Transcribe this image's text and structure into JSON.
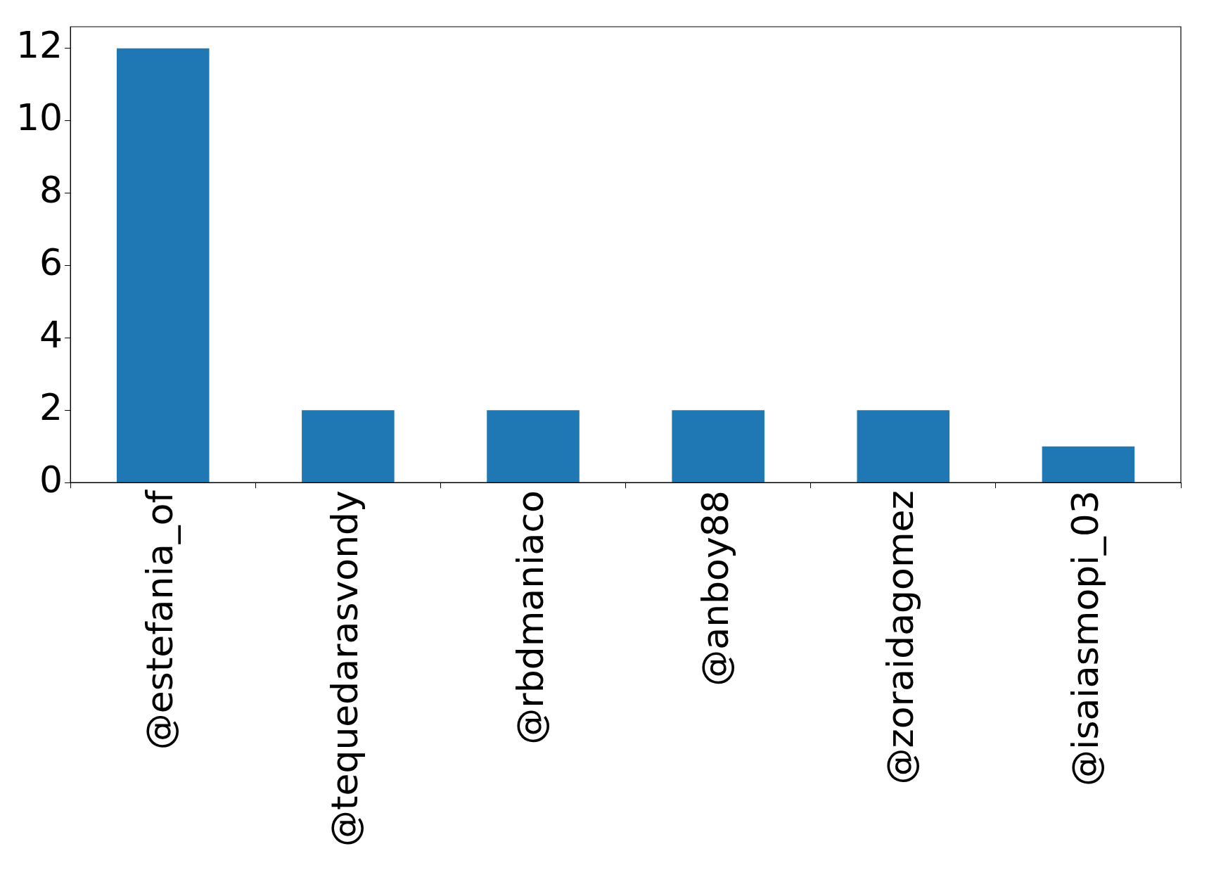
{
  "chart_data": {
    "type": "bar",
    "categories": [
      "@estefania_of",
      "@tequedarasvondy",
      "@rbdmaniaco",
      "@anboy88",
      "@zoraidagomez",
      "@isaiasmopi_03"
    ],
    "values": [
      12,
      2,
      2,
      2,
      2,
      1
    ],
    "color": "#1f77b4",
    "ylim": [
      0,
      12.6
    ],
    "yticks": [
      0,
      2,
      4,
      6,
      8,
      10,
      12
    ],
    "grid": false
  }
}
